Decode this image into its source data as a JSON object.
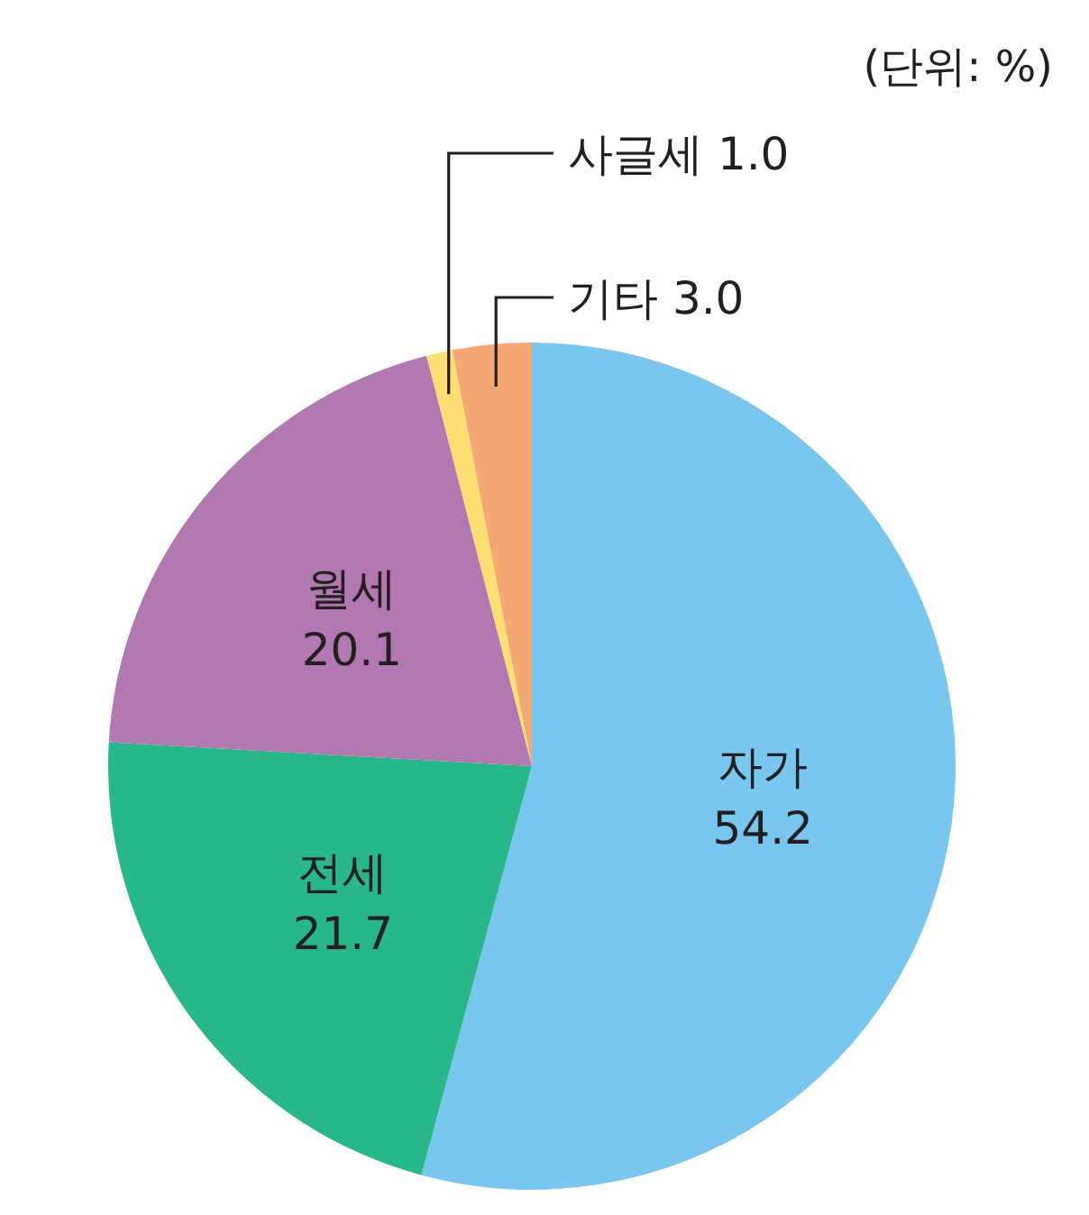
{
  "chart_data": {
    "type": "pie",
    "categories": [
      "자가",
      "전세",
      "월세",
      "사글세",
      "기타"
    ],
    "values": [
      54.2,
      21.7,
      20.1,
      1.0,
      3.0
    ],
    "colors": [
      "#79c7ef",
      "#28b78a",
      "#b278b2",
      "#fde073",
      "#f5a873"
    ],
    "data_labels": true,
    "value_labels": [
      "54.2",
      "21.7",
      "20.1",
      "1.0",
      "3.0"
    ],
    "annotations": [
      "(단위: %)"
    ]
  }
}
